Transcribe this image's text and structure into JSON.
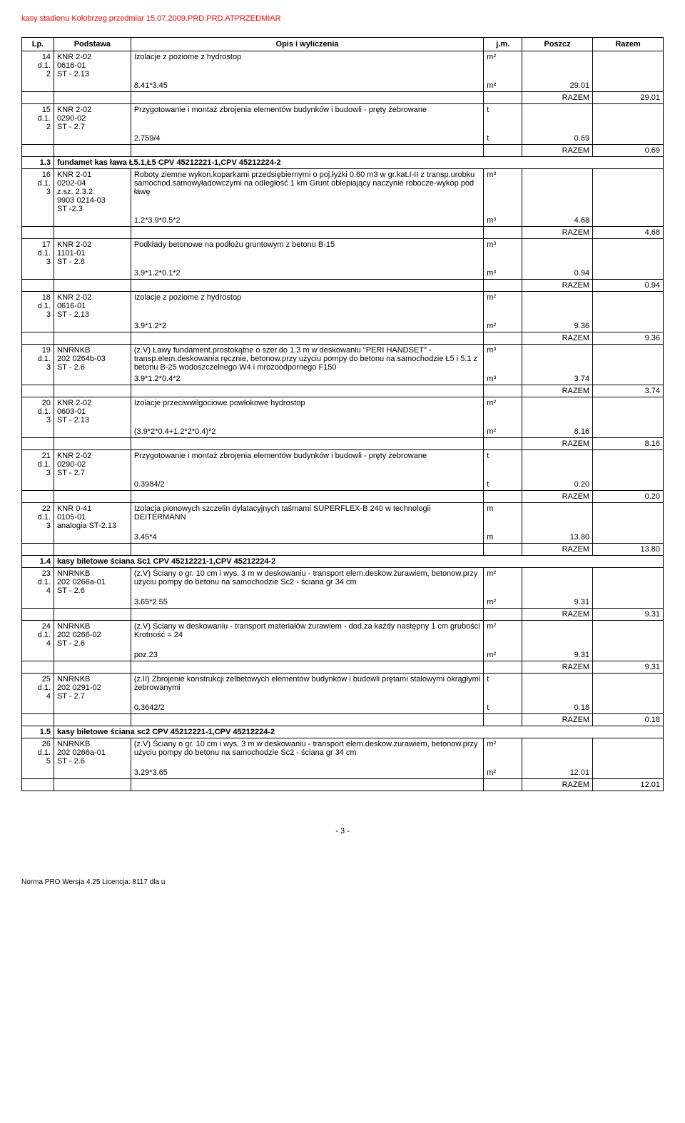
{
  "header": "kasy stadionu Kołobrzeg  przedmiar 15.07.2009.PRD.PRD.ATPRZEDMIAR",
  "columns": [
    "Lp.",
    "Podstawa",
    "Opis i wyliczenia",
    "j.m.",
    "Poszcz",
    "Razem"
  ],
  "rows": [
    {
      "type": "item",
      "lp": "14\nd.1.\n2",
      "pod": "KNR 2-02\n0616-01\nST - 2.13",
      "opis": "Izolacje z poziome z hydrostop",
      "jm": "m²"
    },
    {
      "type": "calc",
      "opis": "8.41*3.45",
      "jm": "m²",
      "poszcz": "29.01"
    },
    {
      "type": "razem",
      "poszcz": "RAZEM",
      "razem": "29.01"
    },
    {
      "type": "item",
      "lp": "15\nd.1.\n2",
      "pod": "KNR 2-02\n0290-02\nST - 2.7",
      "opis": "Przygotowanie i montaż zbrojenia elementów budynków i budowli - pręty żebrowane",
      "jm": "t"
    },
    {
      "type": "calc",
      "opis": "2.759/4",
      "jm": "t",
      "poszcz": "0.69"
    },
    {
      "type": "razem",
      "poszcz": "RAZEM",
      "razem": "0.69"
    },
    {
      "type": "section",
      "lp": "1.3",
      "opis": "fundamet kas ława Ł5.1,Ł5                                           CPV 45212221-1,CPV 45212224-2"
    },
    {
      "type": "item",
      "lp": "16\nd.1.\n3",
      "pod": "KNR 2-01\n0202-04\nz.sz. 2.3.2.\n9903 0214-03\nST -2.3",
      "opis": "Roboty ziemne wykon.koparkami przedsiębiernymi o poj.łyżki 0.60 m3 w gr.kat.I-II z transp.urobku samochod.samowyładowczymi na odległość 1 km Grunt oblepiający naczynie robocze-wykop pod ławę",
      "jm": "m³"
    },
    {
      "type": "calc",
      "opis": "1.2*3.9*0.5*2",
      "jm": "m³",
      "poszcz": "4.68"
    },
    {
      "type": "razem",
      "poszcz": "RAZEM",
      "razem": "4.68"
    },
    {
      "type": "item",
      "lp": "17\nd.1.\n3",
      "pod": "KNR 2-02\n1101-01\nST - 2.8",
      "opis": "Podkłady betonowe na podłożu gruntowym z betonu B-15",
      "jm": "m³"
    },
    {
      "type": "calc",
      "opis": "3.9*1.2*0.1*2",
      "jm": "m³",
      "poszcz": "0.94"
    },
    {
      "type": "razem",
      "poszcz": "RAZEM",
      "razem": "0.94"
    },
    {
      "type": "item",
      "lp": "18\nd.1.\n3",
      "pod": "KNR 2-02\n0616-01\nST - 2.13",
      "opis": "Izolacje z poziome z hydrostop",
      "jm": "m²"
    },
    {
      "type": "calc",
      "opis": "3.9*1.2*2",
      "jm": "m²",
      "poszcz": "9.36"
    },
    {
      "type": "razem",
      "poszcz": "RAZEM",
      "razem": "9.36"
    },
    {
      "type": "item",
      "lp": "19\nd.1.\n3",
      "pod": "NNRNKB\n202 0264b-03\nST - 2.6",
      "opis": "(z.V) Ławy fundament.prostokątne o szer.do 1.3 m w deskowaniu \"PERI HANDSET\" - transp.elem.deskowania ręcznie, betonow.przy użyciu pompy do betonu na samochodzie Ł5 i 5.1 z betonu B-25 wodoszczelnego W4 i mrozoodpornego F150",
      "jm": "m³"
    },
    {
      "type": "calc",
      "opis": "3.9*1.2*0.4*2",
      "jm": "m³",
      "poszcz": "3.74"
    },
    {
      "type": "razem",
      "poszcz": "RAZEM",
      "razem": "3.74"
    },
    {
      "type": "item",
      "lp": "20\nd.1.\n3",
      "pod": "KNR 2-02\n0603-01\nST - 2.13",
      "opis": "Izolacje przeciwwilgociowe powłokowe hydrostop",
      "jm": "m²"
    },
    {
      "type": "calc",
      "opis": "(3.9*2*0.4+1.2*2*0.4)*2",
      "jm": "m²",
      "poszcz": "8.16"
    },
    {
      "type": "razem",
      "poszcz": "RAZEM",
      "razem": "8.16"
    },
    {
      "type": "item",
      "lp": "21\nd.1.\n3",
      "pod": "KNR 2-02\n0290-02\nST - 2.7",
      "opis": "Przygotowanie i montaż zbrojenia elementów budynków i budowli - pręty żebrowane",
      "jm": "t"
    },
    {
      "type": "calc",
      "opis": "0.3984/2",
      "jm": "t",
      "poszcz": "0.20"
    },
    {
      "type": "razem",
      "poszcz": "RAZEM",
      "razem": "0.20"
    },
    {
      "type": "item",
      "lp": "22\nd.1.\n3",
      "pod": "KNR 0-41\n0105-01\nanalogia ST-2.13",
      "opis": "Izolacja pionowych szczelin dylatacyjnych taśmami SUPERFLEX-B 240 w technologii DEITERMANN",
      "jm": "m"
    },
    {
      "type": "calc",
      "opis": "3.45*4",
      "jm": "m",
      "poszcz": "13.80"
    },
    {
      "type": "razem",
      "poszcz": "RAZEM",
      "razem": "13.80"
    },
    {
      "type": "section",
      "lp": "1.4",
      "opis": "kasy biletowe ściana Sc1                                            CPV 45212221-1,CPV 45212224-2"
    },
    {
      "type": "item",
      "lp": "23\nd.1.\n4",
      "pod": "NNRNKB\n202 0266a-01\nST - 2.6",
      "opis": "(z.V) Ściany o gr. 10 cm i wys. 3 m w deskowaniu - transport elem.deskow.żurawiem, betonow.przy użyciu pompy do betonu na samochodzie Sc2 - ściana gr 34 cm",
      "jm": "m²"
    },
    {
      "type": "calc",
      "opis": "3.65*2.55",
      "jm": "m²",
      "poszcz": "9.31"
    },
    {
      "type": "razem",
      "poszcz": "RAZEM",
      "razem": "9.31"
    },
    {
      "type": "item",
      "lp": "24\nd.1.\n4",
      "pod": "NNRNKB\n202 0266-02\nST - 2.6",
      "opis": "(z.V) Ściany w deskowaniu - transport materiałów żurawiem - dod.za każdy następny 1 cm grubości\nKrotność = 24",
      "jm": "m²"
    },
    {
      "type": "calc",
      "opis": "poz.23",
      "jm": "m²",
      "poszcz": "9.31"
    },
    {
      "type": "razem",
      "poszcz": "RAZEM",
      "razem": "9.31"
    },
    {
      "type": "item",
      "lp": "25\nd.1.\n4",
      "pod": "NNRNKB\n202 0291-02\nST - 2.7",
      "opis": "(z.II) Zbrojenie konstrukcji żelbetowych elementów budynków i budowli prętami stalowymi okrągłymi żebrowanymi",
      "jm": "t"
    },
    {
      "type": "calc",
      "opis": "0.3642/2",
      "jm": "t",
      "poszcz": "0.18"
    },
    {
      "type": "razem",
      "poszcz": "RAZEM",
      "razem": "0.18"
    },
    {
      "type": "section",
      "lp": "1.5",
      "opis": "kasy biletowe ściana sc2                                            CPV 45212221-1,CPV 45212224-2"
    },
    {
      "type": "item",
      "lp": "26\nd.1.\n5",
      "pod": "NNRNKB\n202 0266a-01\nST - 2.6",
      "opis": "(z.V) Ściany o gr. 10 cm i wys. 3 m w deskowaniu - transport elem.deskow.żurawiem, betonow.przy użyciu pompy do betonu na samochodzie Sc2 - ściana gr 34 cm",
      "jm": "m²"
    },
    {
      "type": "calc",
      "opis": "3.29*3.65",
      "jm": "m²",
      "poszcz": "12.01"
    },
    {
      "type": "razem",
      "poszcz": "RAZEM",
      "razem": "12.01"
    }
  ],
  "pageNum": "- 3 -",
  "footer": "Norma PRO Wersja 4.25 Licencja: 8117 dla u"
}
